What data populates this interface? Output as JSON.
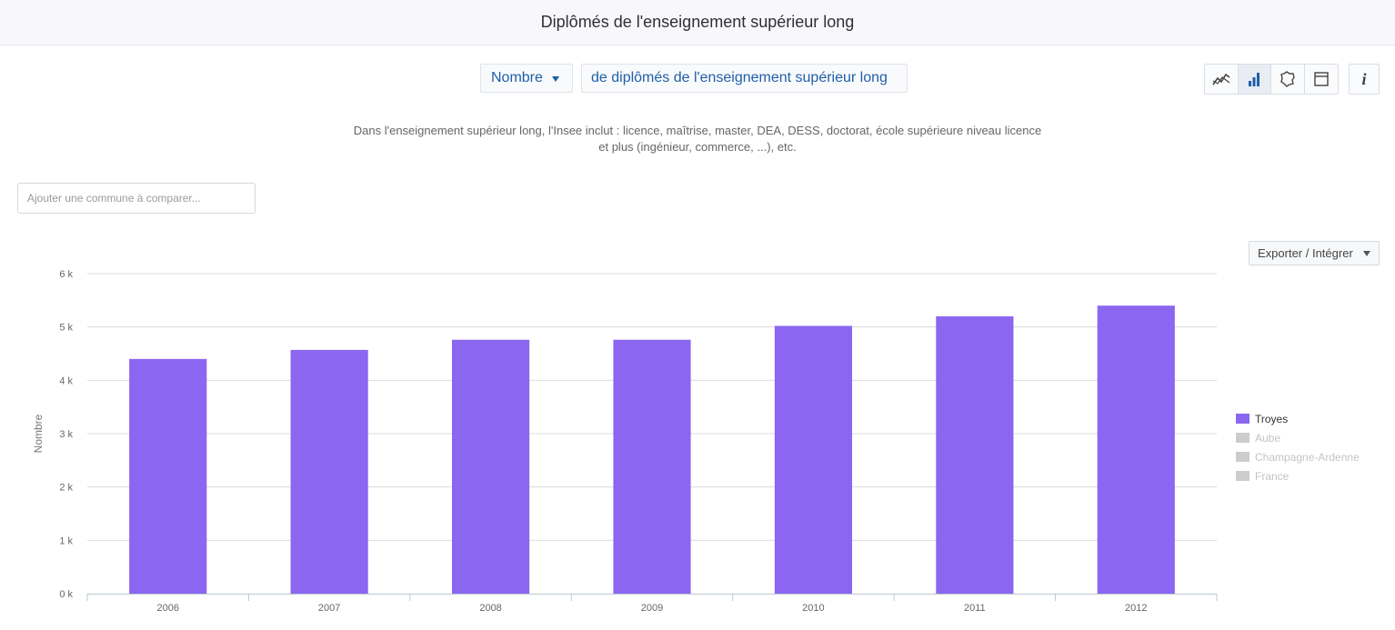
{
  "header": {
    "title": "Diplômés de l'enseignement supérieur long"
  },
  "selector": {
    "measure": "Nombre",
    "indicator": "de diplômés de l'enseignement supérieur long"
  },
  "view_icons": [
    "line-chart-icon",
    "bar-chart-icon",
    "map-icon",
    "table-icon"
  ],
  "info_label": "i",
  "description": "Dans l'enseignement supérieur long, l'Insee inclut : licence, maîtrise, master, DEA, DESS, doctorat, école supérieure niveau licence et plus (ingénieur, commerce, ...), etc.",
  "compare": {
    "placeholder": "Ajouter une commune à comparer..."
  },
  "export": {
    "label": "Exporter / Intégrer"
  },
  "colors": {
    "bar": "#8b66f0",
    "inactive": "#cccccc",
    "accent": "#1f5fa8"
  },
  "chart_data": {
    "type": "bar",
    "categories": [
      "2006",
      "2007",
      "2008",
      "2009",
      "2010",
      "2011",
      "2012"
    ],
    "series": [
      {
        "name": "Troyes",
        "values": [
          4400,
          4570,
          4760,
          4760,
          5020,
          5200,
          5400
        ],
        "active": true
      },
      {
        "name": "Aube",
        "active": false
      },
      {
        "name": "Champagne-Ardenne",
        "active": false
      },
      {
        "name": "France",
        "active": false
      }
    ],
    "ylabel": "Nombre",
    "ylim": [
      0,
      6000
    ],
    "yticks": [
      "0 k",
      "1 k",
      "2 k",
      "3 k",
      "4 k",
      "5 k",
      "6 k"
    ],
    "grid": true,
    "legend_position": "right"
  }
}
